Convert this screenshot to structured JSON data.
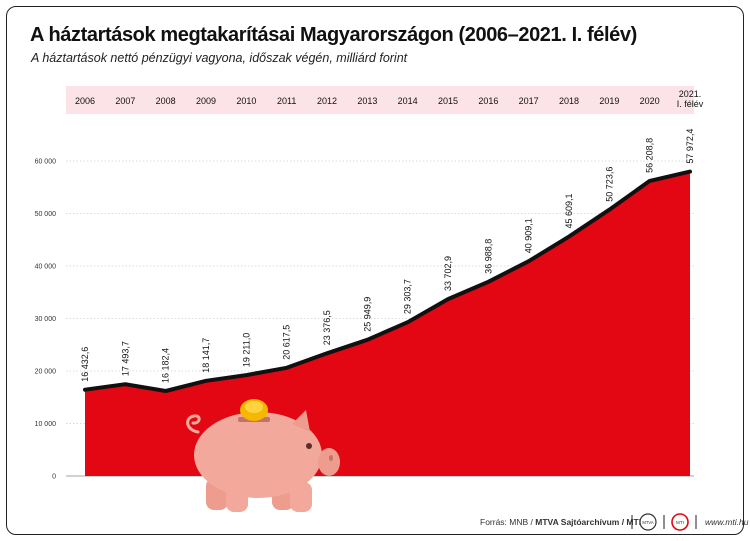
{
  "title": "A háztartások megtakarításai Magyarországon (2006–2021. I. félév)",
  "subtitle": "A háztartások nettó pénzügyi vagyona, időszak végén, milliárd forint",
  "footer": {
    "source_label": "Forrás: MNB /",
    "source_bold": "MTVA Sajtóarchívum / MTI",
    "site": "www.mti.hu",
    "logo_mtva": "MTVA",
    "logo_mti": "MTI"
  },
  "colors": {
    "area": "#e30613",
    "line": "#111111",
    "header_band": "#fbe3e7",
    "pig": "#f2a99c",
    "coin": "#f5b800"
  },
  "chart_data": {
    "type": "area",
    "categories": [
      "2006",
      "2007",
      "2008",
      "2009",
      "2010",
      "2011",
      "2012",
      "2013",
      "2014",
      "2015",
      "2016",
      "2017",
      "2018",
      "2019",
      "2020",
      "2021. I. félév"
    ],
    "values": [
      16432.6,
      17493.7,
      16182.4,
      18141.7,
      19211.0,
      20617.5,
      23376.5,
      25949.9,
      29303.7,
      33702.9,
      36988.8,
      40909.1,
      45609.1,
      50723.6,
      56208.8,
      57972.4
    ],
    "value_labels": [
      "16 432,6",
      "17 493,7",
      "16 182,4",
      "18 141,7",
      "19 211,0",
      "20 617,5",
      "23 376,5",
      "25 949,9",
      "29 303,7",
      "33 702,9",
      "36 988,8",
      "40 909,1",
      "45 609,1",
      "50 723,6",
      "56 208,8",
      "57 972,4"
    ],
    "yticks": [
      "0",
      "10 000",
      "20 000",
      "30 000",
      "40 000",
      "50 000",
      "60 000"
    ],
    "ylim": [
      0,
      60000
    ],
    "grid": true
  }
}
